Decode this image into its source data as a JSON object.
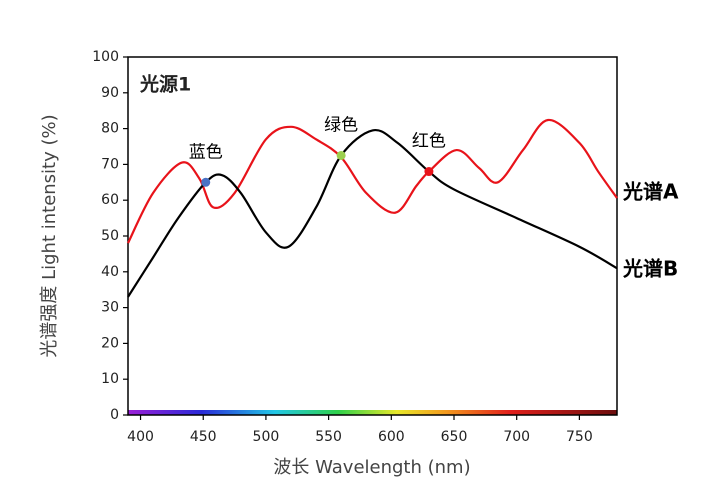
{
  "chart_data": {
    "type": "line",
    "title": "光源1",
    "x_label": "波长 Wavelength (nm)",
    "y_label": "光谱强度 Light intensity (%)",
    "xlim": [
      390,
      780
    ],
    "xticks": [
      400,
      450,
      500,
      550,
      600,
      650,
      700,
      750
    ],
    "ylim": [
      0,
      100
    ],
    "yticks": [
      0,
      10,
      20,
      30,
      40,
      50,
      60,
      70,
      80,
      90,
      100
    ],
    "series": [
      {
        "name": "光谱A",
        "color": "#e8131a",
        "x": [
          390,
          410,
          433,
          447,
          458,
          475,
          500,
          520,
          540,
          560,
          580,
          603,
          620,
          630,
          652,
          670,
          685,
          705,
          725,
          750,
          765,
          780
        ],
        "values": [
          48,
          62,
          70.5,
          66,
          58,
          62,
          77,
          80.5,
          77,
          72,
          62,
          56.5,
          64,
          68,
          74,
          69,
          65,
          74,
          82.4,
          76,
          68,
          60.6
        ]
      },
      {
        "name": "光谱B",
        "color": "#000000",
        "x": [
          390,
          410,
          430,
          452,
          465,
          480,
          500,
          518,
          540,
          560,
          585,
          605,
          630,
          650,
          700,
          750,
          780
        ],
        "values": [
          33,
          44,
          55,
          65,
          67,
          62,
          51,
          47,
          58,
          72.5,
          79.5,
          76,
          68,
          63,
          55,
          47,
          41
        ]
      }
    ],
    "annotations": [
      {
        "text": "蓝色",
        "x": 452,
        "y": 65,
        "color": "#4a72c4"
      },
      {
        "text": "绿色",
        "x": 560,
        "y": 72.5,
        "color": "#9ccf4f"
      },
      {
        "text": "红色",
        "x": 630,
        "y": 68,
        "color": "#e8131a"
      }
    ]
  }
}
